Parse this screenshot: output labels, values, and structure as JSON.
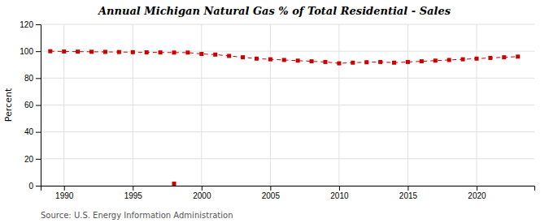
{
  "chart_data": {
    "type": "line",
    "title": "Annual Michigan Natural Gas % of Total Residential - Sales",
    "ylabel": "Percent",
    "annotations": [
      "Source: U.S. Energy Information Administration"
    ],
    "x": [
      1989,
      1990,
      1991,
      1992,
      1993,
      1994,
      1995,
      1996,
      1997,
      1998,
      1999,
      2000,
      2001,
      2002,
      2003,
      2004,
      2005,
      2006,
      2007,
      2008,
      2009,
      2010,
      2011,
      2012,
      2013,
      2014,
      2015,
      2016,
      2017,
      2018,
      2019,
      2020,
      2021,
      2022,
      2023
    ],
    "series": [
      {
        "color": "#cc0000",
        "marker": "square",
        "line_style": "dashed",
        "values": [
          100.0,
          99.8,
          99.7,
          99.6,
          99.5,
          99.4,
          99.3,
          99.2,
          99.1,
          99.0,
          99.0,
          98.0,
          97.5,
          96.5,
          95.5,
          94.5,
          94.0,
          93.5,
          93.0,
          92.5,
          92.0,
          91.0,
          91.5,
          91.8,
          92.0,
          91.5,
          92.0,
          92.5,
          93.0,
          93.5,
          94.0,
          94.5,
          95.0,
          95.5,
          96.0
        ]
      },
      {
        "color": "#cc0000",
        "marker": "square",
        "line_style": "none",
        "values": [
          null,
          null,
          null,
          null,
          null,
          null,
          null,
          null,
          null,
          1.5,
          null,
          null,
          null,
          null,
          null,
          null,
          null,
          null,
          null,
          null,
          null,
          null,
          null,
          null,
          null,
          null,
          null,
          null,
          null,
          null,
          null,
          null,
          null,
          null,
          null
        ]
      }
    ],
    "xlim": [
      1988.3,
      2024.2
    ],
    "xticks": [
      1990,
      1995,
      2000,
      2005,
      2010,
      2015,
      2020
    ],
    "ylim": [
      0,
      120
    ],
    "yticks": [
      0,
      20,
      40,
      60,
      80,
      100,
      120
    ],
    "grid": true
  }
}
